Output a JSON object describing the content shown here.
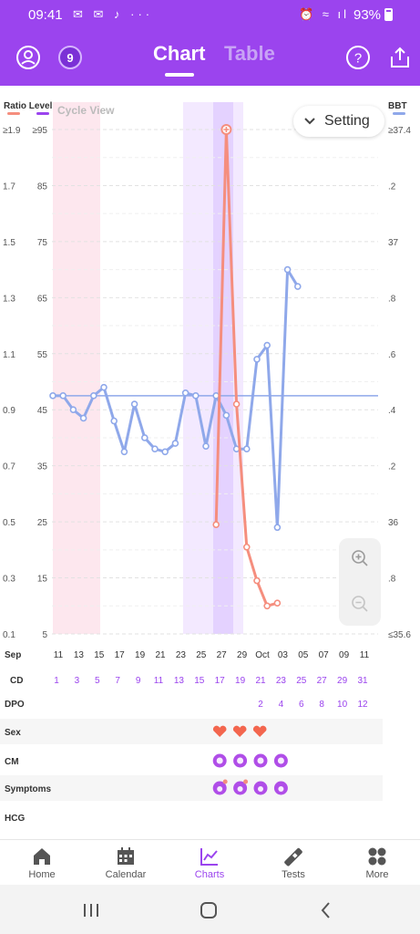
{
  "status_bar": {
    "time": "09:41",
    "battery": "93%"
  },
  "header": {
    "tabs": [
      {
        "label": "Chart",
        "active": true
      },
      {
        "label": "Table",
        "active": false
      }
    ],
    "badge": "9",
    "icons": [
      "profile-icon",
      "level-badge-icon",
      "help-icon",
      "share-icon"
    ]
  },
  "chart_data": {
    "type": "line",
    "left_axis_title": "Ratio Level",
    "right_axis_title": "BBT",
    "cycle_view_label": "Cycle View",
    "left_ratio_ticks": [
      "≥1.9",
      "1.7",
      "1.5",
      "1.3",
      "1.1",
      "0.9",
      "0.7",
      "0.5",
      "0.3",
      "0.1"
    ],
    "left_level_ticks": [
      "≥95",
      "85",
      "75",
      "65",
      "55",
      "45",
      "35",
      "25",
      "15",
      "5"
    ],
    "right_ticks": [
      "≥37.4",
      ".2",
      "37",
      ".8",
      ".6",
      ".4",
      ".2",
      "36",
      ".8",
      "≤35.6"
    ],
    "x_month_start": "Sep",
    "date_labels": [
      "11",
      "13",
      "15",
      "17",
      "19",
      "21",
      "23",
      "25",
      "27",
      "29",
      "Oct",
      "03",
      "05",
      "07",
      "09",
      "11"
    ],
    "cd_label": "CD",
    "cd_values": [
      "1",
      "3",
      "5",
      "7",
      "9",
      "11",
      "13",
      "15",
      "17",
      "19",
      "21",
      "23",
      "25",
      "27",
      "29",
      "31"
    ],
    "dpo_label": "DPO",
    "dpo_values": [
      "2",
      "4",
      "6",
      "8",
      "10",
      "12"
    ],
    "cover_line_bbt": 36.45,
    "series": [
      {
        "name": "BBT",
        "color": "#8fa8ea",
        "days": [
          1,
          2,
          3,
          4,
          5,
          6,
          7,
          8,
          9,
          10,
          11,
          12,
          13,
          14,
          15,
          16,
          17,
          18,
          19,
          20,
          21,
          22,
          23,
          24,
          25
        ],
        "values": [
          36.45,
          36.45,
          36.4,
          36.37,
          36.45,
          36.48,
          36.36,
          36.25,
          36.42,
          36.3,
          36.26,
          36.25,
          36.28,
          36.46,
          36.45,
          36.27,
          36.45,
          36.38,
          36.26,
          36.26,
          36.58,
          36.63,
          35.98,
          36.9,
          36.84
        ]
      },
      {
        "name": "Ratio Level",
        "color": "#f58e7e",
        "days": [
          17,
          18,
          19,
          20,
          21,
          22,
          23
        ],
        "values": [
          0.49,
          1.97,
          0.92,
          0.41,
          0.29,
          0.2,
          0.21
        ]
      }
    ],
    "rows": {
      "sex_label": "Sex",
      "cm_label": "CM",
      "symptoms_label": "Symptoms",
      "hcg_label": "HCG"
    },
    "legend": {
      "ratio_color": "#f58e7e",
      "level_color": "#9b44ee",
      "bbt_color": "#8fa8ea"
    }
  },
  "setting": {
    "label": "Setting"
  },
  "zoom": {
    "in_icon": "zoom-in-icon",
    "out_icon": "zoom-out-icon"
  },
  "nav": [
    {
      "label": "Home",
      "icon": "home-icon"
    },
    {
      "label": "Calendar",
      "icon": "calendar-icon"
    },
    {
      "label": "Charts",
      "icon": "chart-icon",
      "active": true
    },
    {
      "label": "Tests",
      "icon": "test-strip-icon"
    },
    {
      "label": "More",
      "icon": "more-icon"
    }
  ],
  "colors": {
    "accent": "#9b44ee",
    "ratio": "#f58e7e",
    "bbt": "#8fa8ea",
    "period": "#fde7ee",
    "fertile": "#f3e9ff",
    "ovulation": "#e4d2ff"
  }
}
